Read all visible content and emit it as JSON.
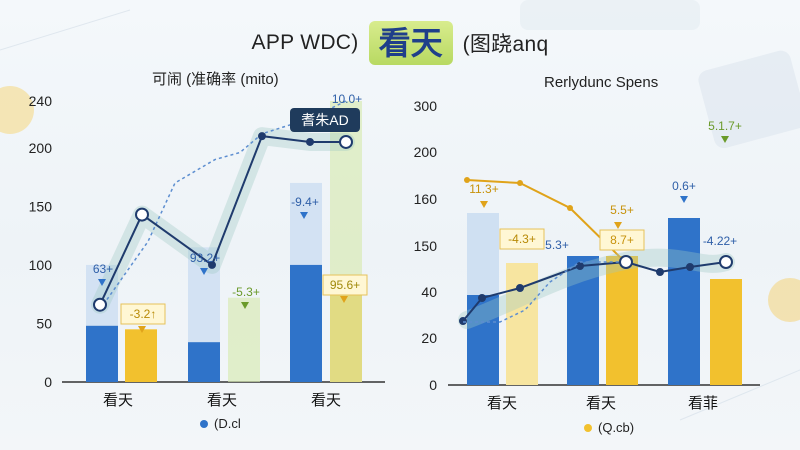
{
  "header": {
    "title_left": "APP WDC)",
    "title_mid": "看天",
    "title_right": "(图跷anq"
  },
  "colors": {
    "blue": "#2f73c9",
    "blue_light": "#c9dcf1",
    "yellow": "#f2c12e",
    "yellow_light": "#f7e5a0",
    "green_light": "#d7e9b0",
    "navy": "#1f3b6d",
    "accent_box": "#1f3b5c"
  },
  "chart_data": [
    {
      "type": "bar",
      "title": "可闹 (准确率 (mito)",
      "categories": [
        "看天",
        "看天",
        "看天"
      ],
      "ylim": [
        0,
        240
      ],
      "yticks": [
        "0",
        "50",
        "100",
        "150",
        "200",
        "240"
      ],
      "series": [
        {
          "name": "(D.cl",
          "values": [
            48,
            34,
            100
          ]
        },
        {
          "values": [
            100,
            115,
            170
          ]
        },
        {
          "values": [
            45,
            0,
            75
          ]
        },
        {
          "values": [
            0,
            72,
            248
          ]
        }
      ],
      "line": {
        "values": [
          66,
          143,
          100,
          210,
          205,
          205
        ]
      },
      "data_labels": [
        "63+",
        "-3.2↑",
        "93.2+",
        "-5.3+",
        "-9.4+",
        "95.6+",
        "10.0+"
      ],
      "callout": "耆朱AD",
      "legend": "(D.cl"
    },
    {
      "type": "bar",
      "title": "Rerlydunc Spens",
      "categories": [
        "看天",
        "看天",
        "看菲"
      ],
      "ylim": [
        0,
        300
      ],
      "yticks": [
        "0",
        "20",
        "40",
        "150",
        "160",
        "200",
        "300"
      ],
      "series": [
        {
          "values": [
            39,
            0,
            0
          ]
        },
        {
          "values": [
            150,
            160,
            155
          ]
        },
        {
          "name": "(Q.cb)",
          "values": [
            52,
            55,
            200
          ]
        }
      ],
      "line": {
        "values": [
          23,
          35,
          62,
          57,
          62,
          60
        ]
      },
      "line2": {
        "values": [
          180,
          175,
          120,
          58
        ]
      },
      "data_labels": [
        "11.3+",
        "-4.3+",
        "5.3+",
        "5.5+",
        "8.7+",
        "0.6+",
        "-4.22+",
        "5.1.7+"
      ],
      "legend": "(Q.cb)"
    }
  ]
}
